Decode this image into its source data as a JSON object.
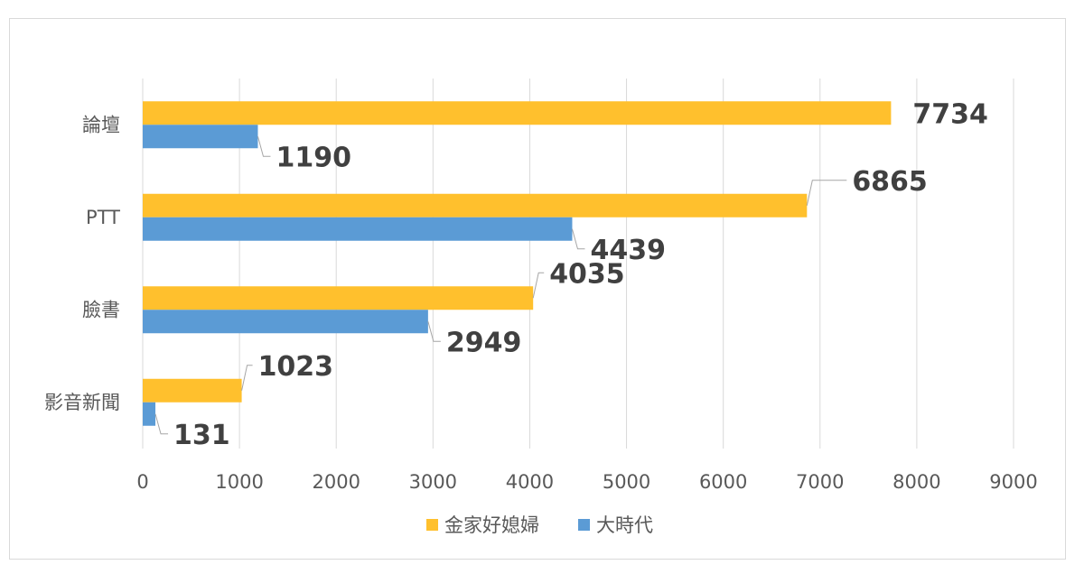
{
  "chart_data": {
    "type": "bar",
    "orientation": "horizontal",
    "categories": [
      "論壇",
      "PTT",
      "臉書",
      "影音新聞"
    ],
    "series": [
      {
        "name": "金家好媳婦",
        "color": "#FFC02D",
        "values": [
          7734,
          6865,
          4035,
          1023
        ]
      },
      {
        "name": "大時代",
        "color": "#5B9BD5",
        "values": [
          1190,
          4439,
          2949,
          131
        ]
      }
    ],
    "xlim": [
      0,
      9000
    ],
    "xticks": [
      0,
      1000,
      2000,
      3000,
      4000,
      5000,
      6000,
      7000,
      8000,
      9000
    ],
    "xticks_labels": [
      "0",
      "1000",
      "2000",
      "3000",
      "4000",
      "5000",
      "6000",
      "7000",
      "8000",
      "9000"
    ],
    "grid": true,
    "legend_position": "bottom",
    "data_labels": true,
    "title": "",
    "xlabel": "",
    "ylabel": ""
  }
}
